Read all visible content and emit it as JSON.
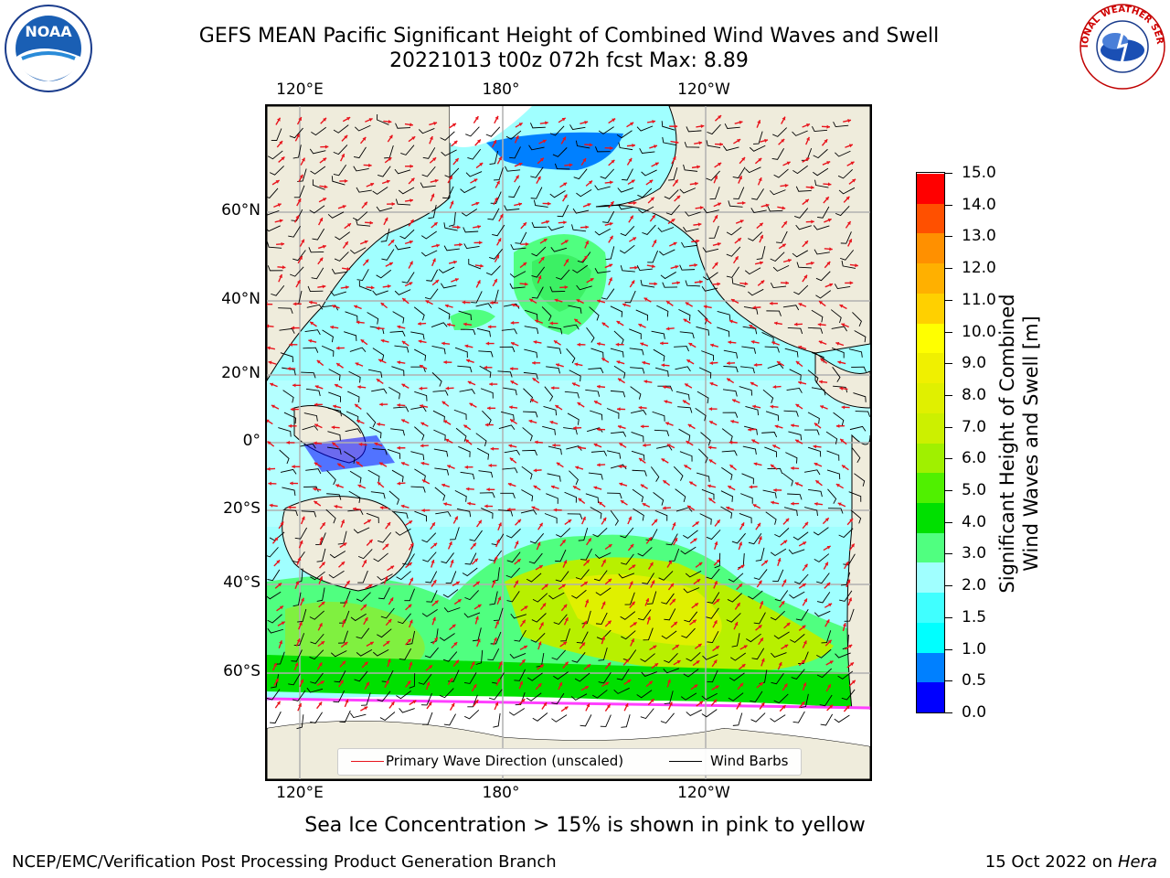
{
  "title": {
    "line1": "GEFS MEAN Pacific Significant Height of Combined Wind Waves and Swell",
    "line2": "20221013 t00z 072h fcst   Max: 8.89"
  },
  "logos": {
    "left": {
      "icon": "noaa-logo",
      "text": "NOAA"
    },
    "right": {
      "icon": "nws-logo",
      "text": "NATIONAL WEATHER SERVICE"
    }
  },
  "map": {
    "lon_labels_top": [
      "120°E",
      "180°",
      "120°W"
    ],
    "lon_labels_bottom": [
      "120°E",
      "180°",
      "120°W"
    ],
    "lat_labels": [
      "60°N",
      "40°N",
      "20°N",
      "0°",
      "20°S",
      "40°S",
      "60°S"
    ],
    "land_color": "#efecdc",
    "grid_color": "#b0b0b0"
  },
  "legend": {
    "items": [
      {
        "label": "Primary Wave Direction (unscaled)",
        "color": "#e8141c"
      },
      {
        "label": "Wind Barbs",
        "color": "#000000"
      }
    ]
  },
  "colorbar": {
    "label_line1": "Significant Height of Combined",
    "label_line2": "Wind Waves and Swell [m]",
    "ticks": [
      "15.0",
      "14.0",
      "13.0",
      "12.0",
      "11.0",
      "10.0",
      "9.0",
      "8.0",
      "7.0",
      "6.0",
      "5.0",
      "4.0",
      "3.0",
      "2.0",
      "1.5",
      "1.0",
      "0.5",
      "0.0"
    ],
    "colors": [
      "#0000ff",
      "#0080ff",
      "#00ffff",
      "#40ffff",
      "#a0ffff",
      "#50ff80",
      "#00e000",
      "#50f000",
      "#a0f000",
      "#ccf000",
      "#e0f000",
      "#f0f000",
      "#ffff00",
      "#ffd000",
      "#ffb000",
      "#ff9000",
      "#ff5000",
      "#ff0000"
    ]
  },
  "sea_ice_note": "Sea Ice Concentration > 15% is shown in pink to yellow",
  "footer": {
    "left": "NCEP/EMC/Verification Post Processing Product Generation Branch",
    "right_date": "15 Oct 2022 on ",
    "right_host": "Hera"
  }
}
